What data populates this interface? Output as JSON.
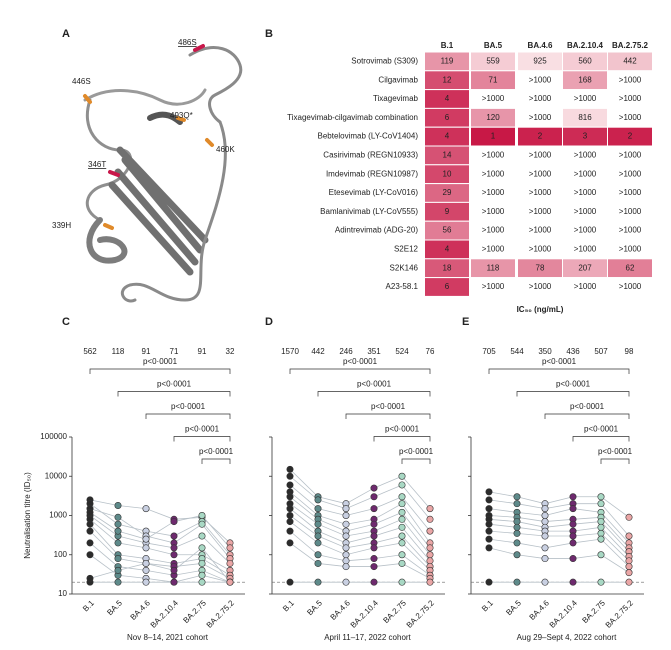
{
  "panel_a": {
    "letter": "A",
    "labels": [
      "486S",
      "493Q*",
      "446S",
      "460K",
      "346T",
      "339H"
    ]
  },
  "panel_b": {
    "letter": "B",
    "columns": [
      "B.1",
      "BA.5",
      "BA.4.6",
      "BA.2.10.4",
      "BA.2.75.2"
    ],
    "rows": [
      {
        "label": "Sotrovimab (S309)",
        "cells": [
          119,
          559,
          925,
          560,
          442
        ]
      },
      {
        "label": "Cilgavimab",
        "cells": [
          12,
          71,
          ">1000",
          168,
          ">1000"
        ]
      },
      {
        "label": "Tixagevimab",
        "cells": [
          4,
          ">1000",
          ">1000",
          ">1000",
          ">1000"
        ]
      },
      {
        "label": "Tixagevimab-cilgavimab combination",
        "cells": [
          6,
          120,
          ">1000",
          816,
          ">1000"
        ]
      },
      {
        "label": "Bebtelovimab (LY-CoV1404)",
        "cells": [
          4,
          1,
          2,
          3,
          2
        ]
      },
      {
        "label": "Casirivimab (REGN10933)",
        "cells": [
          14,
          ">1000",
          ">1000",
          ">1000",
          ">1000"
        ]
      },
      {
        "label": "Imdevimab (REGN10987)",
        "cells": [
          10,
          ">1000",
          ">1000",
          ">1000",
          ">1000"
        ]
      },
      {
        "label": "Etesevimab (LY-CoV016)",
        "cells": [
          29,
          ">1000",
          ">1000",
          ">1000",
          ">1000"
        ]
      },
      {
        "label": "Bamlanivimab (LY-CoV555)",
        "cells": [
          9,
          ">1000",
          ">1000",
          ">1000",
          ">1000"
        ]
      },
      {
        "label": "Adintrevimab (ADG-20)",
        "cells": [
          56,
          ">1000",
          ">1000",
          ">1000",
          ">1000"
        ]
      },
      {
        "label": "S2E12",
        "cells": [
          4,
          ">1000",
          ">1000",
          ">1000",
          ">1000"
        ]
      },
      {
        "label": "S2K146",
        "cells": [
          18,
          118,
          78,
          207,
          62
        ]
      },
      {
        "label": "A23-58.1",
        "cells": [
          6,
          ">1000",
          ">1000",
          ">1000",
          ">1000"
        ]
      }
    ],
    "axis_label": "IC₅₀ (ng/mL)"
  },
  "chart_data": [
    {
      "type": "paired",
      "letter": "C",
      "title": "Nov 8–14, 2021 cohort",
      "y_label": "Neutralisation titre (ID₅₀)",
      "categories": [
        "B.1",
        "BA.5",
        "BA.4.6",
        "BA.2.10.4",
        "BA.2.75",
        "BA.2.75.2"
      ],
      "summary_values": [
        562,
        118,
        91,
        71,
        91,
        32
      ],
      "comparisons": [
        "p<0·0001",
        "p<0·0001",
        "p<0·0001",
        "p<0·0001",
        "p<0·0001"
      ],
      "point_colors": [
        "#2b2b2b",
        "#5e8a8a",
        "#c9d0e2",
        "#6e2a6e",
        "#a8d8c4",
        "#eaa6a6"
      ],
      "line_color": "#b8c1c8",
      "log_scale": true,
      "ylim": [
        10,
        100000
      ],
      "yticks": [
        10,
        100,
        1000,
        10000,
        100000
      ],
      "threshold": 20,
      "series": [
        {
          "values": [
            2500,
            1800,
            1500,
            800,
            900,
            200
          ]
        },
        {
          "values": [
            2000,
            600,
            400,
            300,
            700,
            100
          ]
        },
        {
          "values": [
            1500,
            900,
            300,
            200,
            600,
            80
          ]
        },
        {
          "values": [
            1000,
            300,
            200,
            150,
            300,
            60
          ]
        },
        {
          "values": [
            800,
            200,
            150,
            100,
            100,
            40
          ]
        },
        {
          "values": [
            600,
            100,
            80,
            60,
            80,
            30
          ]
        },
        {
          "values": [
            400,
            80,
            60,
            50,
            60,
            25
          ]
        },
        {
          "values": [
            200,
            50,
            40,
            30,
            40,
            20
          ]
        },
        {
          "values": [
            100,
            30,
            25,
            20,
            30,
            20
          ]
        },
        {
          "values": [
            20,
            20,
            20,
            20,
            20,
            20
          ]
        },
        {
          "values": [
            25,
            40,
            60,
            40,
            150,
            20
          ]
        },
        {
          "values": [
            1200,
            400,
            250,
            700,
            1000,
            150
          ]
        }
      ]
    },
    {
      "type": "paired",
      "letter": "D",
      "title": "April 11–17, 2022 cohort",
      "categories": [
        "B.1",
        "BA.5",
        "BA.4.6",
        "BA.2.10.4",
        "BA.2.75",
        "BA.2.75.2"
      ],
      "summary_values": [
        1570,
        442,
        246,
        351,
        524,
        76
      ],
      "comparisons": [
        "p<0·0001",
        "p<0·0001",
        "p<0·0001",
        "p<0·0001",
        "p<0·0001"
      ],
      "point_colors": [
        "#2b2b2b",
        "#5e8a8a",
        "#c9d0e2",
        "#6e2a6e",
        "#a8d8c4",
        "#eaa6a6"
      ],
      "line_color": "#b8c1c8",
      "log_scale": true,
      "ylim": [
        10,
        100000
      ],
      "yticks": [
        10,
        100,
        1000,
        10000,
        100000
      ],
      "threshold": 20,
      "series": [
        {
          "values": [
            15000,
            3000,
            2000,
            5000,
            10000,
            1500
          ]
        },
        {
          "values": [
            10000,
            2500,
            1500,
            3000,
            6000,
            800
          ]
        },
        {
          "values": [
            6000,
            1500,
            1000,
            1500,
            3000,
            400
          ]
        },
        {
          "values": [
            4000,
            1000,
            600,
            800,
            2000,
            200
          ]
        },
        {
          "values": [
            3000,
            800,
            400,
            600,
            1200,
            150
          ]
        },
        {
          "values": [
            2000,
            600,
            300,
            400,
            800,
            100
          ]
        },
        {
          "values": [
            1500,
            400,
            200,
            300,
            500,
            70
          ]
        },
        {
          "values": [
            1000,
            300,
            150,
            200,
            300,
            50
          ]
        },
        {
          "values": [
            700,
            200,
            100,
            150,
            200,
            40
          ]
        },
        {
          "values": [
            400,
            100,
            70,
            80,
            100,
            30
          ]
        },
        {
          "values": [
            200,
            60,
            50,
            50,
            60,
            25
          ]
        },
        {
          "values": [
            20,
            20,
            20,
            20,
            20,
            20
          ]
        }
      ]
    },
    {
      "type": "paired",
      "letter": "E",
      "title": "Aug 29–Sept 4, 2022 cohort",
      "categories": [
        "B.1",
        "BA.5",
        "BA.4.6",
        "BA.2.10.4",
        "BA.2.75",
        "BA.2.75.2"
      ],
      "summary_values": [
        705,
        544,
        350,
        436,
        507,
        98
      ],
      "comparisons": [
        "p<0·0001",
        "p<0·0001",
        "p<0·0001",
        "p<0·0001",
        "p<0·0001"
      ],
      "point_colors": [
        "#2b2b2b",
        "#5e8a8a",
        "#c9d0e2",
        "#6e2a6e",
        "#a8d8c4",
        "#eaa6a6"
      ],
      "line_color": "#b8c1c8",
      "log_scale": true,
      "ylim": [
        10,
        100000
      ],
      "yticks": [
        10,
        100,
        1000,
        10000,
        100000
      ],
      "threshold": 20,
      "series": [
        {
          "values": [
            4000,
            3000,
            2000,
            3000,
            3000,
            900
          ]
        },
        {
          "values": [
            2500,
            2000,
            1500,
            2000,
            2000,
            300
          ]
        },
        {
          "values": [
            1500,
            1200,
            1000,
            1500,
            1200,
            200
          ]
        },
        {
          "values": [
            1000,
            900,
            700,
            800,
            900,
            150
          ]
        },
        {
          "values": [
            800,
            700,
            500,
            600,
            700,
            120
          ]
        },
        {
          "values": [
            600,
            500,
            400,
            400,
            500,
            90
          ]
        },
        {
          "values": [
            400,
            350,
            300,
            300,
            350,
            70
          ]
        },
        {
          "values": [
            250,
            200,
            150,
            200,
            250,
            50
          ]
        },
        {
          "values": [
            150,
            100,
            80,
            80,
            100,
            35
          ]
        },
        {
          "values": [
            20,
            20,
            20,
            20,
            20,
            20
          ]
        }
      ]
    }
  ]
}
